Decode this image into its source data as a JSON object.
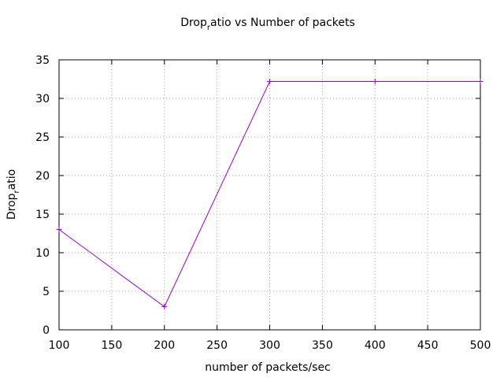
{
  "chart_data": {
    "type": "line",
    "title": {
      "main": "Drop",
      "sub": "r",
      "rest": "atio vs Number of packets"
    },
    "xlabel": "number of packets/sec",
    "ylabel": {
      "main": "Drop",
      "sub": "r",
      "rest": "atio"
    },
    "xlim": [
      100,
      500
    ],
    "ylim": [
      0,
      35
    ],
    "x_ticks": [
      100,
      150,
      200,
      250,
      300,
      350,
      400,
      450,
      500
    ],
    "y_ticks": [
      0,
      5,
      10,
      15,
      20,
      25,
      30,
      35
    ],
    "grid": true,
    "legend": "none",
    "series": [
      {
        "color": "#9400d3",
        "marker": "plus",
        "x": [
          100,
          200,
          300,
          400,
          500
        ],
        "y": [
          13,
          3,
          32.2,
          32.2,
          32.2
        ]
      }
    ]
  }
}
